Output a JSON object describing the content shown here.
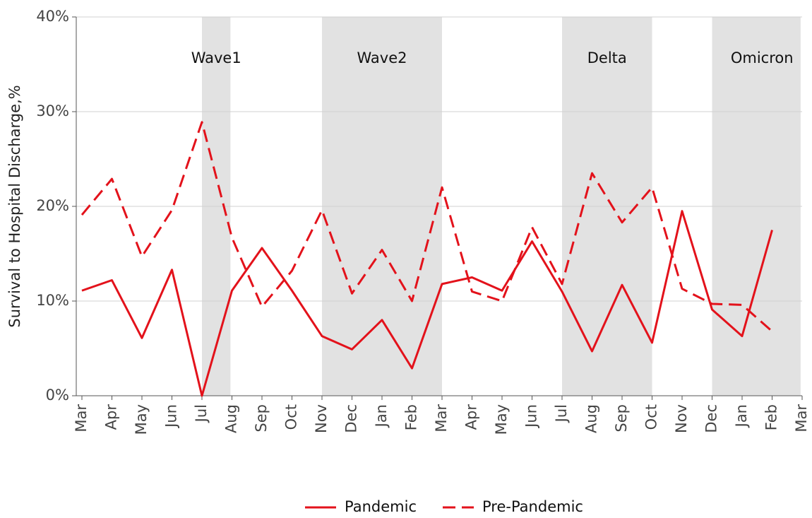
{
  "chart_data": {
    "type": "line",
    "ylabel": "Survival to Hospital Discharge,%",
    "categories": [
      "Mar",
      "Apr",
      "May",
      "Jun",
      "Jul",
      "Aug",
      "Sep",
      "Oct",
      "Nov",
      "Dec",
      "Jan",
      "Feb",
      "Mar",
      "Apr",
      "May",
      "Jun",
      "Jul",
      "Aug",
      "Sep",
      "Oct",
      "Nov",
      "Dec",
      "Jan",
      "Feb",
      "Mar"
    ],
    "series": [
      {
        "name": "Pandemic",
        "color": "#e3121b",
        "linestyle": "solid",
        "values": [
          11.1,
          12.2,
          6.1,
          13.3,
          0,
          11.1,
          15.6,
          11.1,
          6.3,
          4.9,
          8.0,
          2.9,
          11.8,
          12.5,
          11.1,
          16.3,
          11.0,
          4.7,
          11.7,
          5.6,
          19.5,
          9.1,
          6.3,
          17.5,
          null
        ]
      },
      {
        "name": "Pre-Pandemic",
        "color": "#e3121b",
        "linestyle": "dashed",
        "values": [
          19.1,
          22.9,
          14.7,
          19.6,
          28.9,
          16.7,
          9.4,
          13.2,
          19.6,
          10.8,
          15.4,
          10.0,
          22.0,
          11.0,
          10.0,
          17.8,
          11.8,
          23.5,
          18.3,
          22.0,
          11.3,
          9.7,
          9.6,
          6.8,
          null
        ]
      }
    ],
    "bands": [
      {
        "label": "Wave1",
        "start": 4,
        "end": 4.95
      },
      {
        "label": "Wave2",
        "start": 8,
        "end": 12
      },
      {
        "label": "Delta",
        "start": 16,
        "end": 19
      },
      {
        "label": "Omicron",
        "start": 21,
        "end": 23.95
      }
    ],
    "ylim": [
      0,
      40
    ],
    "yticks": [
      {
        "value": 0,
        "label": "0%"
      },
      {
        "value": 10,
        "label": "10%"
      },
      {
        "value": 20,
        "label": "20%"
      },
      {
        "value": 30,
        "label": "30%"
      },
      {
        "value": 40,
        "label": "40%"
      }
    ],
    "grid": true,
    "legend": "bottom"
  }
}
